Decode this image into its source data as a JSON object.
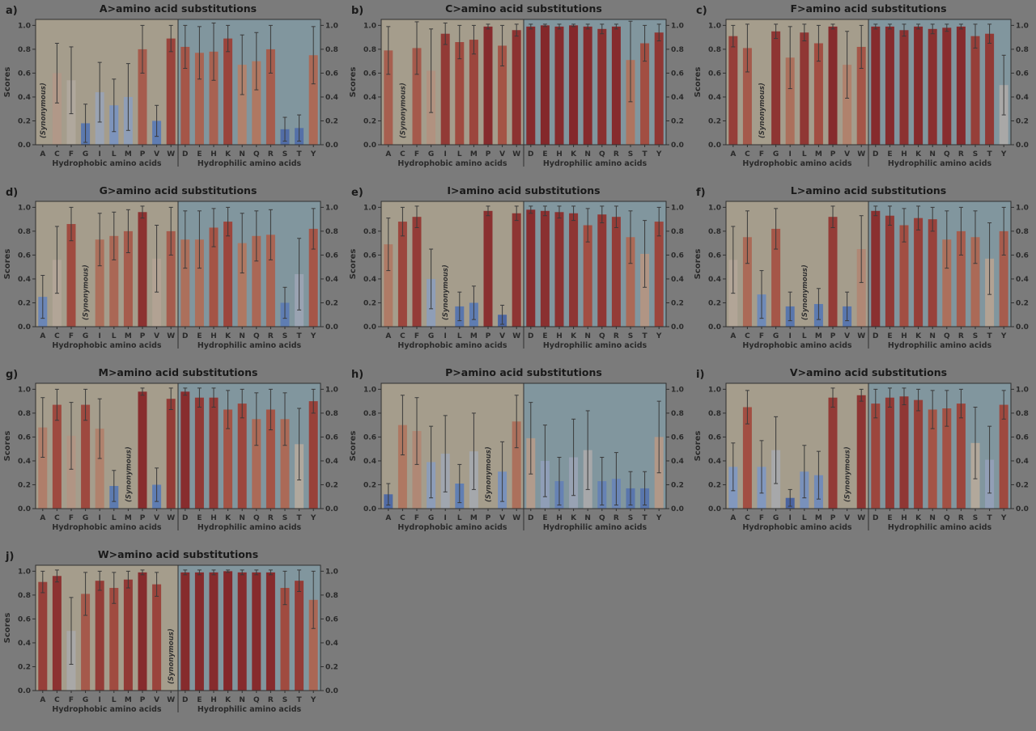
{
  "figure": {
    "background": "#7b7b7b",
    "y_axis_label": "Scores",
    "y_ticks": [
      "0.0",
      "0.2",
      "0.4",
      "0.6",
      "0.8",
      "1.0"
    ],
    "group_labels": {
      "hydrophobic": "Hydrophobic amino acids",
      "hydrophilic": "Hydrophilic amino acids"
    },
    "synonymous_label": "(Synonymous)",
    "colors": {
      "hydrophobic_bg": "#a59d8c",
      "hydrophilic_bg": "#81969e",
      "frame": "#2f2f2f",
      "errorbar": "#3a3a3a",
      "tick_text": "#2a2a2a",
      "title_text": "#1a1a1a",
      "bar_low": "#3a5091",
      "bar_mid": "#aaa8a5",
      "bar_high": "#84282b"
    }
  },
  "chart_data": {
    "type": "bar",
    "ylabel": "Scores",
    "ylim": [
      0,
      1.05
    ],
    "categories": [
      "A",
      "C",
      "F",
      "G",
      "I",
      "L",
      "M",
      "P",
      "V",
      "W",
      "D",
      "E",
      "H",
      "K",
      "N",
      "Q",
      "R",
      "S",
      "T",
      "Y"
    ],
    "hydrophobic_categories": [
      "A",
      "C",
      "F",
      "G",
      "I",
      "L",
      "M",
      "P",
      "V",
      "W"
    ],
    "hydrophilic_categories": [
      "D",
      "E",
      "H",
      "K",
      "N",
      "Q",
      "R",
      "S",
      "T",
      "Y"
    ],
    "panels": [
      {
        "id": "a",
        "label": "a)",
        "title": "A>amino acid substitutions",
        "synonymous": "A",
        "values": [
          null,
          0.6,
          0.54,
          0.18,
          0.44,
          0.33,
          0.4,
          0.8,
          0.2,
          0.89,
          0.82,
          0.77,
          0.78,
          0.89,
          0.67,
          0.7,
          0.8,
          0.13,
          0.14,
          0.75
        ],
        "errors": [
          null,
          0.25,
          0.28,
          0.16,
          0.25,
          0.22,
          0.28,
          0.2,
          0.13,
          0.11,
          0.18,
          0.22,
          0.24,
          0.11,
          0.25,
          0.24,
          0.2,
          0.1,
          0.11,
          0.24
        ]
      },
      {
        "id": "b",
        "label": "b)",
        "title": "C>amino acid substitutions",
        "synonymous": "C",
        "values": [
          0.79,
          null,
          0.81,
          0.62,
          0.93,
          0.86,
          0.88,
          0.99,
          0.83,
          0.96,
          0.99,
          1.0,
          0.99,
          1.0,
          0.99,
          0.97,
          0.99,
          0.71,
          0.85,
          0.94
        ],
        "errors": [
          0.2,
          null,
          0.22,
          0.35,
          0.09,
          0.14,
          0.12,
          0.02,
          0.17,
          0.05,
          0.02,
          0.01,
          0.02,
          0.01,
          0.02,
          0.04,
          0.02,
          0.35,
          0.15,
          0.07
        ]
      },
      {
        "id": "c",
        "label": "c)",
        "title": "F>amino acid substitutions",
        "synonymous": "F",
        "values": [
          0.91,
          0.81,
          null,
          0.95,
          0.73,
          0.94,
          0.85,
          0.99,
          0.67,
          0.82,
          0.99,
          0.99,
          0.96,
          0.99,
          0.97,
          0.98,
          0.99,
          0.91,
          0.93,
          0.5
        ],
        "errors": [
          0.09,
          0.2,
          null,
          0.06,
          0.26,
          0.07,
          0.15,
          0.02,
          0.28,
          0.18,
          0.02,
          0.02,
          0.05,
          0.02,
          0.04,
          0.03,
          0.02,
          0.1,
          0.08,
          0.25
        ]
      },
      {
        "id": "d",
        "label": "d)",
        "title": "G>amino acid substitutions",
        "synonymous": "G",
        "values": [
          0.25,
          0.56,
          0.86,
          null,
          0.73,
          0.76,
          0.8,
          0.96,
          0.57,
          0.8,
          0.73,
          0.73,
          0.83,
          0.88,
          0.7,
          0.76,
          0.77,
          0.2,
          0.44,
          0.82
        ],
        "errors": [
          0.18,
          0.28,
          0.14,
          null,
          0.22,
          0.2,
          0.18,
          0.05,
          0.28,
          0.2,
          0.24,
          0.24,
          0.16,
          0.12,
          0.25,
          0.21,
          0.21,
          0.13,
          0.3,
          0.17
        ]
      },
      {
        "id": "e",
        "label": "e)",
        "title": "I>amino acid substitutions",
        "synonymous": "I",
        "values": [
          0.69,
          0.88,
          0.92,
          0.4,
          null,
          0.17,
          0.2,
          0.97,
          0.1,
          0.95,
          0.98,
          0.97,
          0.96,
          0.95,
          0.85,
          0.94,
          0.92,
          0.75,
          0.61,
          0.88
        ],
        "errors": [
          0.22,
          0.12,
          0.09,
          0.25,
          null,
          0.12,
          0.14,
          0.04,
          0.08,
          0.06,
          0.03,
          0.04,
          0.05,
          0.06,
          0.14,
          0.07,
          0.09,
          0.22,
          0.28,
          0.12
        ]
      },
      {
        "id": "f",
        "label": "f)",
        "title": "L>amino acid substitutions",
        "synonymous": "L",
        "values": [
          0.56,
          0.75,
          0.27,
          0.82,
          0.17,
          null,
          0.19,
          0.92,
          0.17,
          0.65,
          0.97,
          0.93,
          0.85,
          0.91,
          0.9,
          0.73,
          0.8,
          0.75,
          0.57,
          0.8
        ],
        "errors": [
          0.28,
          0.22,
          0.2,
          0.17,
          0.12,
          null,
          0.13,
          0.09,
          0.12,
          0.28,
          0.04,
          0.08,
          0.14,
          0.1,
          0.1,
          0.24,
          0.2,
          0.22,
          0.3,
          0.2
        ]
      },
      {
        "id": "g",
        "label": "g)",
        "title": "M>amino acid substitutions",
        "synonymous": "M",
        "values": [
          0.68,
          0.87,
          0.61,
          0.87,
          0.67,
          0.19,
          null,
          0.98,
          0.2,
          0.92,
          0.98,
          0.93,
          0.93,
          0.83,
          0.88,
          0.75,
          0.83,
          0.75,
          0.54,
          0.9
        ],
        "errors": [
          0.25,
          0.13,
          0.28,
          0.13,
          0.25,
          0.13,
          null,
          0.03,
          0.14,
          0.09,
          0.03,
          0.08,
          0.08,
          0.16,
          0.12,
          0.22,
          0.17,
          0.22,
          0.3,
          0.1
        ]
      },
      {
        "id": "h",
        "label": "h)",
        "title": "P>amino acid substitutions",
        "synonymous": "P",
        "values": [
          0.12,
          0.7,
          0.65,
          0.39,
          0.46,
          0.21,
          0.48,
          null,
          0.31,
          0.73,
          0.59,
          0.4,
          0.23,
          0.43,
          0.49,
          0.23,
          0.25,
          0.17,
          0.17,
          0.6
        ],
        "errors": [
          0.09,
          0.25,
          0.28,
          0.3,
          0.32,
          0.16,
          0.32,
          null,
          0.25,
          0.22,
          0.3,
          0.3,
          0.2,
          0.32,
          0.33,
          0.2,
          0.22,
          0.14,
          0.14,
          0.3
        ]
      },
      {
        "id": "i",
        "label": "i)",
        "title": "V>amino acid substitutions",
        "synonymous": "V",
        "values": [
          0.35,
          0.85,
          0.35,
          0.49,
          0.09,
          0.31,
          0.28,
          0.93,
          null,
          0.95,
          0.88,
          0.93,
          0.94,
          0.91,
          0.83,
          0.84,
          0.88,
          0.55,
          0.41,
          0.87
        ],
        "errors": [
          0.2,
          0.14,
          0.22,
          0.28,
          0.07,
          0.22,
          0.2,
          0.08,
          null,
          0.05,
          0.12,
          0.08,
          0.07,
          0.09,
          0.16,
          0.15,
          0.12,
          0.3,
          0.28,
          0.12
        ]
      },
      {
        "id": "j",
        "label": "j)",
        "title": "W>amino acid substitutions",
        "synonymous": "W",
        "values": [
          0.91,
          0.96,
          0.5,
          0.81,
          0.92,
          0.86,
          0.93,
          0.99,
          0.89,
          null,
          0.99,
          0.99,
          0.99,
          1.0,
          0.99,
          0.99,
          0.99,
          0.86,
          0.92,
          0.76
        ],
        "errors": [
          0.09,
          0.05,
          0.28,
          0.18,
          0.08,
          0.13,
          0.07,
          0.02,
          0.1,
          null,
          0.02,
          0.02,
          0.02,
          0.01,
          0.02,
          0.02,
          0.02,
          0.14,
          0.09,
          0.24
        ]
      }
    ]
  }
}
